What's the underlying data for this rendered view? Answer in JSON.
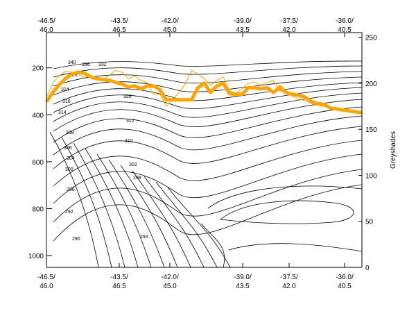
{
  "chart_data": {
    "type": "line",
    "title": "",
    "right_axis_label": "Greyshades",
    "top_axis": {
      "tick_labels": [
        {
          "line1": "-46.5/",
          "line2": "46.0"
        },
        {
          "line1": "-43.5/",
          "line2": "46.5"
        },
        {
          "line1": "-42.0/",
          "line2": "45.0"
        },
        {
          "line1": "-39.0/",
          "line2": "43.5"
        },
        {
          "line1": "-37.5/",
          "line2": "42.0"
        },
        {
          "line1": "-36.0/",
          "line2": "40.5"
        }
      ]
    },
    "bottom_axis": {
      "tick_labels": [
        {
          "line1": "-46.5/",
          "line2": "46.0"
        },
        {
          "line1": "-43.5/",
          "line2": "46.5"
        },
        {
          "line1": "-42.0/",
          "line2": "45.0"
        },
        {
          "line1": "-39.0/",
          "line2": "43.5"
        },
        {
          "line1": "-37.5/",
          "line2": "42.0"
        },
        {
          "line1": "-36.0/",
          "line2": "40.5"
        }
      ]
    },
    "left_axis": {
      "range": [
        1050,
        50
      ],
      "ticks": [
        200,
        400,
        600,
        800,
        1000
      ]
    },
    "right_axis": {
      "range": [
        0,
        255
      ],
      "ticks": [
        0,
        50,
        100,
        150,
        200,
        250
      ]
    },
    "contour_labels": [
      "340",
      "336",
      "332",
      "328",
      "324",
      "320",
      "316",
      "314",
      "312",
      "310",
      "308",
      "306",
      "304",
      "302",
      "300",
      "298",
      "296",
      "294",
      "292",
      "290"
    ],
    "series": [
      {
        "color": "#ffa500",
        "style": "thick",
        "axis": "right",
        "x": [
          0,
          0.02,
          0.04,
          0.06,
          0.08,
          0.1,
          0.12,
          0.14,
          0.16,
          0.18,
          0.2,
          0.22,
          0.24,
          0.26,
          0.28,
          0.3,
          0.32,
          0.34,
          0.36,
          0.38,
          0.4,
          0.42,
          0.44,
          0.46,
          0.48,
          0.5,
          0.52,
          0.54,
          0.56,
          0.58,
          0.6,
          0.62,
          0.64,
          0.66,
          0.68,
          0.7,
          0.72,
          0.74,
          0.76,
          0.78,
          0.8,
          0.82,
          0.84,
          0.86,
          0.88,
          0.9,
          0.92,
          0.94,
          0.96,
          0.98,
          1.0
        ],
        "values": [
          180,
          190,
          198,
          205,
          210,
          212,
          211,
          207,
          205,
          204,
          203,
          201,
          199,
          196,
          197,
          194,
          197,
          197,
          193,
          182,
          182,
          182,
          182,
          182,
          195,
          200,
          190,
          197,
          200,
          189,
          188,
          188,
          195,
          195,
          194,
          195,
          190,
          196,
          190,
          188,
          187,
          185,
          180,
          178,
          177,
          173,
          172,
          171,
          170,
          169,
          168
        ]
      },
      {
        "color": "#ffa500",
        "style": "thin",
        "axis": "right",
        "x": [
          0,
          0.02,
          0.04,
          0.06,
          0.08,
          0.1,
          0.12,
          0.14,
          0.16,
          0.18,
          0.2,
          0.22,
          0.24,
          0.26,
          0.28,
          0.3,
          0.32,
          0.34,
          0.36,
          0.38,
          0.4,
          0.42,
          0.44,
          0.46,
          0.48,
          0.5,
          0.52,
          0.54,
          0.56,
          0.58,
          0.6,
          0.62,
          0.64,
          0.66,
          0.68,
          0.7,
          0.72,
          0.74,
          0.76,
          0.78,
          0.8,
          0.82,
          0.84,
          0.86,
          0.88,
          0.9,
          0.92,
          0.94,
          0.96,
          0.98,
          1.0
        ],
        "values": [
          185,
          200,
          208,
          213,
          212,
          210,
          206,
          208,
          206,
          204,
          209,
          214,
          212,
          205,
          208,
          203,
          201,
          188,
          188,
          175,
          182,
          190,
          199,
          214,
          210,
          205,
          198,
          203,
          207,
          192,
          189,
          194,
          200,
          201,
          198,
          201,
          203,
          192,
          189,
          186,
          183,
          181,
          178,
          176,
          175,
          174,
          173,
          171,
          170,
          170,
          169
        ]
      }
    ]
  }
}
